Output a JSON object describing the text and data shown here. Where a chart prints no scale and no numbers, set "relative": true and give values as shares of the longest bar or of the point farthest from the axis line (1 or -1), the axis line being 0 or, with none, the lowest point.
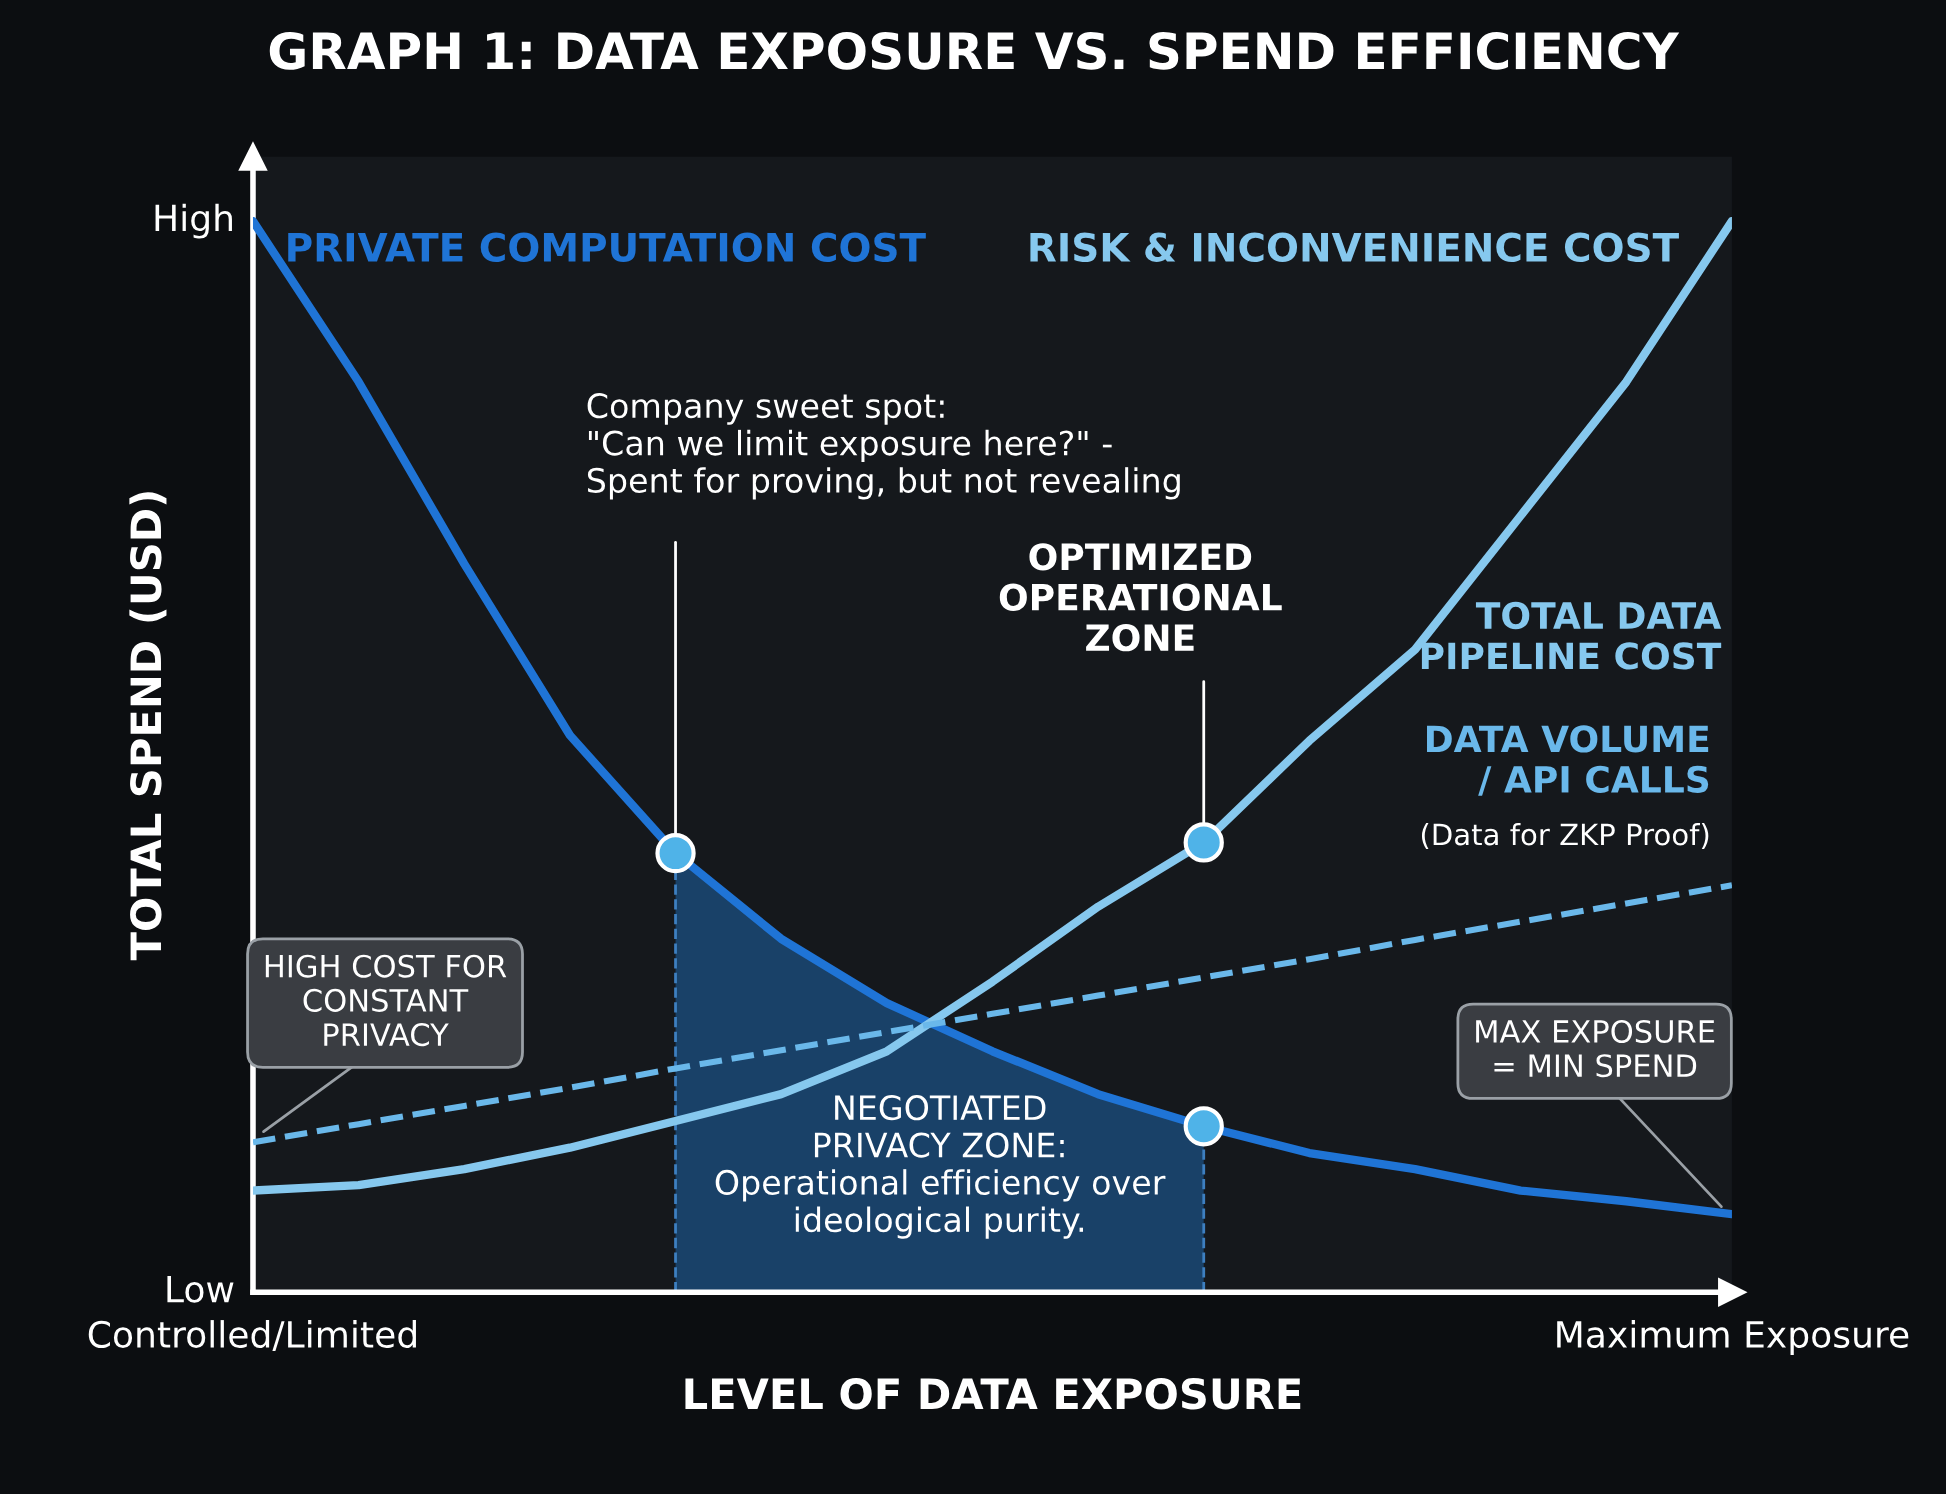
{
  "chart_data": {
    "type": "line",
    "title": "GRAPH 1: DATA EXPOSURE VS. SPEND EFFICIENCY",
    "xlabel": "LEVEL OF DATA EXPOSURE",
    "ylabel": "TOTAL SPEND (USD)",
    "relative": true,
    "categories": [
      "Controlled/Limited",
      null,
      null,
      null,
      null,
      null,
      null,
      null,
      null,
      null,
      null,
      null,
      null,
      null,
      "Maximum Exposure"
    ],
    "series": [
      {
        "name": "PRIVATE COMPUTATION COST",
        "color": "#1f74d6",
        "values": [
          1.0,
          0.85,
          0.68,
          0.52,
          0.41,
          0.33,
          0.27,
          0.225,
          0.185,
          0.155,
          0.13,
          0.115,
          0.095,
          0.085,
          0.073
        ]
      },
      {
        "name": "RISK & INCONVENIENCE COST",
        "color": "#86c8ee",
        "values": [
          0.095,
          0.1,
          0.115,
          0.135,
          0.16,
          0.185,
          0.225,
          0.29,
          0.36,
          0.42,
          0.515,
          0.6,
          0.725,
          0.85,
          1.0
        ]
      },
      {
        "name": "DATA VOLUME\n/ API CALLS",
        "color": "#6ab8ea",
        "line_style": "dashed",
        "values": [
          0.14,
          0.157,
          0.174,
          0.191,
          0.209,
          0.226,
          0.243,
          0.26,
          0.277,
          0.294,
          0.311,
          0.329,
          0.346,
          0.363,
          0.38
        ]
      },
      {
        "type": "scatter",
        "color": "#4fb3e8",
        "marker": "circle",
        "values": [
          null,
          null,
          null,
          null,
          0.41,
          null,
          null,
          null,
          null,
          0.42,
          null,
          null,
          null,
          null,
          null
        ]
      },
      {
        "type": "scatter",
        "color": "#4fb3e8",
        "marker": "circle",
        "values": [
          null,
          null,
          null,
          null,
          null,
          null,
          null,
          null,
          null,
          0.155,
          null,
          null,
          null,
          null,
          null
        ]
      }
    ],
    "annotations": [
      "High",
      "Low",
      "NEGOTIATED\nPRIVACY ZONE:\nOperational efficiency over\nideological purity.",
      "Company sweet spot:\n\"Can we limit exposure here?\" -\nSpent for proving, but not revealing",
      "OPTIMIZED\nOPERATIONAL\nZONE",
      "TOTAL DATA\nPIPELINE COST",
      "(Data for ZKP Proof)",
      "HIGH COST FOR\nCONSTANT\nPRIVACY",
      "MAX EXPOSURE\n= MIN SPEND"
    ],
    "grid": false,
    "legend": false
  }
}
